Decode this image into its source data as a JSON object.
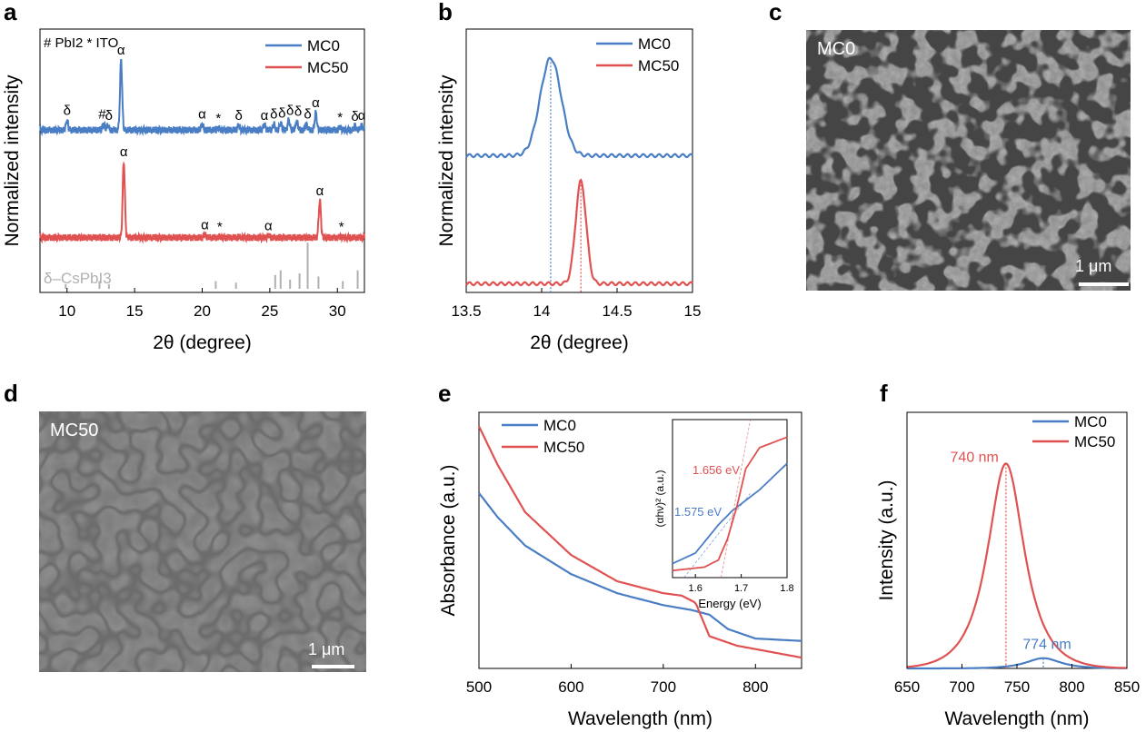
{
  "colors": {
    "mc0": "#4a7ec4",
    "mc50": "#e05252",
    "ref": "#b0b0b0"
  },
  "panels": {
    "a": "a",
    "b": "b",
    "c": "c",
    "d": "d",
    "e": "e",
    "f": "f"
  },
  "sem_c": {
    "label": "MC0",
    "scale": "1 μm"
  },
  "sem_d": {
    "label": "MC50",
    "scale": "1 μm"
  },
  "chart_data": [
    {
      "id": "a",
      "type": "line",
      "xlabel": "2θ (degree)",
      "ylabel": "Normalized intensity",
      "xlim": [
        8,
        32
      ],
      "xticks": [
        10,
        15,
        20,
        25,
        30
      ],
      "legend_position": "top-right",
      "marker_key": "# PbI2  * ITO",
      "series": [
        {
          "name": "MC0",
          "offset": 0.62,
          "baseline": 0.0,
          "peaks": [
            [
              10.0,
              0.1
            ],
            [
              12.7,
              0.06
            ],
            [
              13.0,
              0.05
            ],
            [
              14.0,
              0.72
            ],
            [
              20.0,
              0.06
            ],
            [
              21.2,
              0.02
            ],
            [
              22.7,
              0.05
            ],
            [
              24.6,
              0.05
            ],
            [
              25.3,
              0.06
            ],
            [
              25.8,
              0.07
            ],
            [
              26.4,
              0.1
            ],
            [
              27.0,
              0.09
            ],
            [
              27.7,
              0.06
            ],
            [
              28.4,
              0.18
            ],
            [
              30.2,
              0.03
            ],
            [
              31.3,
              0.04
            ],
            [
              31.8,
              0.05
            ]
          ]
        },
        {
          "name": "MC50",
          "offset": 0.2,
          "baseline": 0.0,
          "peaks": [
            [
              14.2,
              0.78
            ],
            [
              20.2,
              0.03
            ],
            [
              21.3,
              0.01
            ],
            [
              22.7,
              0.01
            ],
            [
              24.9,
              0.02
            ],
            [
              28.7,
              0.38
            ],
            [
              30.3,
              0.01
            ]
          ]
        },
        {
          "name": "δ–CsPbI3",
          "offset": 0.0,
          "reference": true,
          "sticks": [
            [
              9.9,
              0.03
            ],
            [
              12.4,
              0.05
            ],
            [
              13.1,
              0.03
            ],
            [
              21.0,
              0.05
            ],
            [
              22.5,
              0.04
            ],
            [
              25.4,
              0.09
            ],
            [
              25.8,
              0.12
            ],
            [
              26.5,
              0.06
            ],
            [
              27.2,
              0.1
            ],
            [
              27.8,
              0.3
            ],
            [
              28.6,
              0.08
            ],
            [
              30.4,
              0.05
            ],
            [
              31.5,
              0.12
            ]
          ]
        }
      ],
      "annotations": [
        {
          "text": "α",
          "x": 14.0,
          "series": "MC0"
        },
        {
          "text": "δ",
          "x": 10.0,
          "series": "MC0"
        },
        {
          "text": "#",
          "x": 12.6,
          "series": "MC0"
        },
        {
          "text": "δ",
          "x": 13.1,
          "series": "MC0"
        },
        {
          "text": "α",
          "x": 20.0,
          "series": "MC0"
        },
        {
          "text": "*",
          "x": 21.2,
          "series": "MC0"
        },
        {
          "text": "δ",
          "x": 22.7,
          "series": "MC0"
        },
        {
          "text": "α",
          "x": 24.6,
          "series": "MC0"
        },
        {
          "text": "δ",
          "x": 25.3,
          "series": "MC0"
        },
        {
          "text": "δ",
          "x": 25.9,
          "series": "MC0"
        },
        {
          "text": "δ",
          "x": 26.5,
          "series": "MC0"
        },
        {
          "text": "δ",
          "x": 27.1,
          "series": "MC0"
        },
        {
          "text": "δ",
          "x": 27.8,
          "series": "MC0"
        },
        {
          "text": "α",
          "x": 28.4,
          "series": "MC0"
        },
        {
          "text": "*",
          "x": 30.2,
          "series": "MC0"
        },
        {
          "text": "δ",
          "x": 31.3,
          "series": "MC0"
        },
        {
          "text": "α",
          "x": 31.8,
          "series": "MC0"
        },
        {
          "text": "α",
          "x": 14.2,
          "series": "MC50"
        },
        {
          "text": "α",
          "x": 20.2,
          "series": "MC50"
        },
        {
          "text": "*",
          "x": 21.3,
          "series": "MC50"
        },
        {
          "text": "α",
          "x": 24.9,
          "series": "MC50"
        },
        {
          "text": "α",
          "x": 28.7,
          "series": "MC50"
        },
        {
          "text": "*",
          "x": 30.3,
          "series": "MC50"
        }
      ]
    },
    {
      "id": "b",
      "type": "line",
      "xlabel": "2θ (degree)",
      "ylabel": "Normalized intensity",
      "xlim": [
        13.5,
        15.0
      ],
      "xticks": [
        13.5,
        14.0,
        14.5,
        15.0
      ],
      "legend_position": "top-right",
      "series": [
        {
          "name": "MC0",
          "peak_x": 14.06,
          "offset": 0.52,
          "height": 0.38,
          "width": 0.07
        },
        {
          "name": "MC50",
          "peak_x": 14.26,
          "offset": 0.02,
          "height": 0.4,
          "width": 0.035
        }
      ]
    },
    {
      "id": "e",
      "type": "line",
      "xlabel": "Wavelength (nm)",
      "ylabel": "Absorbance (a.u.)",
      "xlim": [
        500,
        850
      ],
      "xticks": [
        500,
        600,
        700,
        800
      ],
      "legend_position": "top-left",
      "series": [
        {
          "name": "MC0",
          "x": [
            500,
            520,
            550,
            600,
            650,
            700,
            730,
            750,
            770,
            800,
            850
          ],
          "y": [
            0.72,
            0.62,
            0.5,
            0.38,
            0.3,
            0.25,
            0.23,
            0.21,
            0.15,
            0.11,
            0.1
          ]
        },
        {
          "name": "MC50",
          "x": [
            500,
            520,
            550,
            600,
            650,
            700,
            720,
            735,
            750,
            780,
            850
          ],
          "y": [
            1.0,
            0.84,
            0.64,
            0.46,
            0.35,
            0.3,
            0.29,
            0.26,
            0.12,
            0.08,
            0.03
          ]
        }
      ],
      "inset": {
        "xlabel": "Energy (eV)",
        "ylabel": "(αhν)² (a.u.)",
        "xlim": [
          1.55,
          1.8
        ],
        "xticks": [
          1.6,
          1.7,
          1.8
        ],
        "series": [
          {
            "name": "MC0",
            "x": [
              1.55,
              1.6,
              1.65,
              1.68,
              1.7,
              1.74,
              1.8
            ],
            "y": [
              0.08,
              0.14,
              0.3,
              0.38,
              0.42,
              0.5,
              0.65
            ]
          },
          {
            "name": "MC50",
            "x": [
              1.55,
              1.62,
              1.65,
              1.67,
              1.69,
              1.71,
              1.74,
              1.8
            ],
            "y": [
              0.04,
              0.06,
              0.1,
              0.22,
              0.4,
              0.62,
              0.74,
              0.8
            ]
          }
        ],
        "annotations": [
          {
            "text": "1.656 eV",
            "series": "MC50"
          },
          {
            "text": "1.575 eV",
            "series": "MC0"
          }
        ],
        "bandgaps": {
          "MC50": 1.656,
          "MC0": 1.575
        }
      }
    },
    {
      "id": "f",
      "type": "line",
      "xlabel": "Wavelength (nm)",
      "ylabel": "Intensity (a.u.)",
      "xlim": [
        650,
        850
      ],
      "xticks": [
        650,
        700,
        750,
        800,
        850
      ],
      "legend_position": "top-right",
      "series": [
        {
          "name": "MC0",
          "peak_x": 774,
          "height": 0.05,
          "width": 17
        },
        {
          "name": "MC50",
          "peak_x": 740,
          "height": 1.0,
          "width": 18
        }
      ],
      "annotations": [
        {
          "text": "740 nm",
          "series": "MC50"
        },
        {
          "text": "774 nm",
          "series": "MC0"
        }
      ]
    }
  ]
}
